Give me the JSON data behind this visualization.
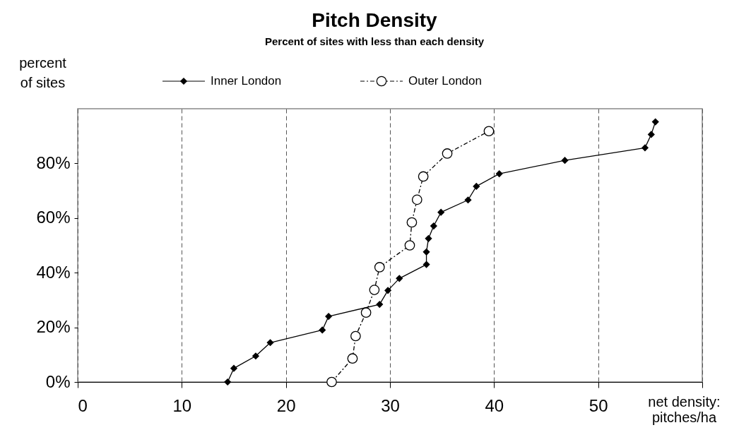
{
  "chart_data": {
    "type": "line",
    "title": "Pitch Density",
    "subtitle": "Percent of sites with less than each density",
    "xlabel": "net density: pitches/ha",
    "ylabel": "percent of sites",
    "xlim": [
      0,
      60
    ],
    "xticks": [
      0,
      10,
      20,
      30,
      40,
      50,
      {
        "value": 60,
        "label": null
      }
    ],
    "ylim": [
      0,
      100
    ],
    "yticks": [
      {
        "value": 0,
        "label": "0%"
      },
      {
        "value": 20,
        "label": "20%"
      },
      {
        "value": 40,
        "label": "40%"
      },
      {
        "value": 60,
        "label": "60%"
      },
      {
        "value": 80,
        "label": "80%"
      }
    ],
    "grid": "x",
    "legend": "top",
    "series": [
      {
        "name": "Inner London",
        "color": "#000000",
        "marker": "diamond",
        "line_style": "solid",
        "x": [
          14.4,
          15.0,
          17.1,
          18.5,
          23.5,
          24.1,
          29.0,
          29.8,
          30.9,
          33.5,
          33.5,
          33.7,
          34.2,
          34.9,
          37.5,
          38.3,
          40.5,
          46.8,
          54.5,
          55.1,
          55.5
        ],
        "values": [
          0,
          5.0,
          9.5,
          14.4,
          19.0,
          24.0,
          28.4,
          33.5,
          37.9,
          43.0,
          47.6,
          52.5,
          57.1,
          62.1,
          66.6,
          71.6,
          76.2,
          81.1,
          85.7,
          90.6,
          95.2
        ]
      },
      {
        "name": "Outer London",
        "color": "#000000",
        "marker": "circle",
        "line_style": "dashed",
        "x": [
          24.4,
          26.4,
          26.7,
          27.7,
          28.5,
          29.0,
          31.9,
          32.1,
          32.6,
          33.2,
          35.5,
          39.5
        ],
        "values": [
          0,
          8.6,
          16.8,
          25.4,
          33.7,
          42.0,
          50.0,
          58.4,
          66.7,
          75.2,
          83.6,
          91.8
        ]
      }
    ]
  }
}
